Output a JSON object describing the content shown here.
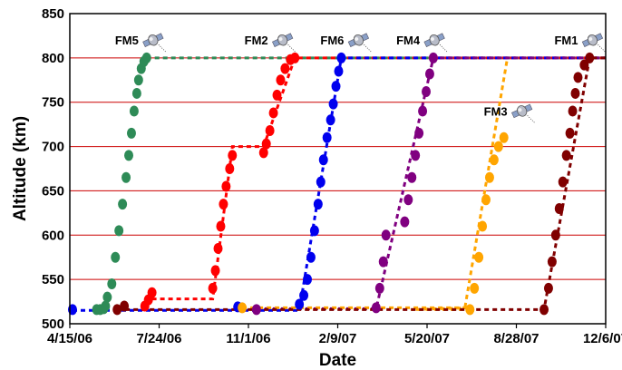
{
  "chart_data": {
    "type": "scatter",
    "xlabel": "Date",
    "ylabel": "Altitude (km)",
    "xlim": [
      "2006-04-15",
      "2007-12-06"
    ],
    "ylim": [
      500,
      850
    ],
    "x_tick_labels": [
      "4/15/06",
      "7/24/06",
      "11/1/06",
      "2/9/07",
      "5/20/07",
      "8/28/07",
      "12/6/07"
    ],
    "y_ticks": [
      500,
      550,
      600,
      650,
      700,
      750,
      800,
      850
    ],
    "grid": "horizontal",
    "gridline_color": "#cc0000",
    "series": [
      {
        "name": "FM5",
        "color": "#2e8b57",
        "points": [
          [
            "2006-05-15",
            516
          ],
          [
            "2006-05-19",
            516
          ],
          [
            "2006-05-23",
            517
          ],
          [
            "2006-05-25",
            520
          ],
          [
            "2006-05-27",
            530
          ],
          [
            "2006-06-01",
            545
          ],
          [
            "2006-06-05",
            575
          ],
          [
            "2006-06-09",
            605
          ],
          [
            "2006-06-13",
            635
          ],
          [
            "2006-06-17",
            665
          ],
          [
            "2006-06-20",
            690
          ],
          [
            "2006-06-23",
            715
          ],
          [
            "2006-06-26",
            740
          ],
          [
            "2006-06-29",
            760
          ],
          [
            "2006-07-01",
            775
          ],
          [
            "2006-07-04",
            788
          ],
          [
            "2006-07-07",
            796
          ],
          [
            "2006-07-10",
            800
          ]
        ],
        "dashed": [
          [
            "2006-07-10",
            800
          ],
          [
            "2007-12-06",
            800
          ]
        ]
      },
      {
        "name": "FM2",
        "color": "#ff0000",
        "points": [
          [
            "2006-07-08",
            520
          ],
          [
            "2006-07-12",
            527
          ],
          [
            "2006-07-16",
            535
          ],
          [
            "2006-09-22",
            540
          ],
          [
            "2006-09-25",
            560
          ],
          [
            "2006-09-28",
            585
          ],
          [
            "2006-10-01",
            610
          ],
          [
            "2006-10-04",
            635
          ],
          [
            "2006-10-07",
            655
          ],
          [
            "2006-10-11",
            675
          ],
          [
            "2006-10-14",
            690
          ],
          [
            "2006-11-18",
            693
          ],
          [
            "2006-11-21",
            703
          ],
          [
            "2006-11-25",
            718
          ],
          [
            "2006-11-29",
            738
          ],
          [
            "2006-12-03",
            758
          ],
          [
            "2006-12-07",
            775
          ],
          [
            "2006-12-12",
            788
          ],
          [
            "2006-12-18",
            798
          ],
          [
            "2006-12-23",
            800
          ]
        ],
        "dashed": [
          [
            "2006-07-16",
            528
          ],
          [
            "2006-09-22",
            528
          ],
          [
            "2006-10-14",
            700
          ],
          [
            "2006-11-18",
            700
          ],
          [
            "2006-12-23",
            800
          ],
          [
            "2007-12-06",
            800
          ]
        ]
      },
      {
        "name": "FM6",
        "color": "#0000ee",
        "points": [
          [
            "2006-04-18",
            516
          ],
          [
            "2006-10-20",
            519
          ],
          [
            "2006-12-28",
            522
          ],
          [
            "2007-01-02",
            532
          ],
          [
            "2007-01-06",
            550
          ],
          [
            "2007-01-10",
            575
          ],
          [
            "2007-01-14",
            605
          ],
          [
            "2007-01-18",
            635
          ],
          [
            "2007-01-21",
            660
          ],
          [
            "2007-01-24",
            685
          ],
          [
            "2007-01-28",
            710
          ],
          [
            "2007-02-01",
            730
          ],
          [
            "2007-02-04",
            748
          ],
          [
            "2007-02-07",
            768
          ],
          [
            "2007-02-10",
            785
          ],
          [
            "2007-02-13",
            800
          ]
        ],
        "dashed": [
          [
            "2006-04-18",
            515
          ],
          [
            "2006-12-28",
            515
          ],
          [
            "2007-02-13",
            800
          ],
          [
            "2007-12-06",
            800
          ]
        ]
      },
      {
        "name": "FM4",
        "color": "#800080",
        "points": [
          [
            "2006-11-10",
            516
          ],
          [
            "2007-03-24",
            518
          ],
          [
            "2007-03-28",
            540
          ],
          [
            "2007-04-01",
            570
          ],
          [
            "2007-04-04",
            600
          ],
          [
            "2007-04-25",
            615
          ],
          [
            "2007-04-29",
            640
          ],
          [
            "2007-05-03",
            665
          ],
          [
            "2007-05-07",
            690
          ],
          [
            "2007-05-11",
            715
          ],
          [
            "2007-05-15",
            740
          ],
          [
            "2007-05-19",
            762
          ],
          [
            "2007-05-23",
            782
          ],
          [
            "2007-05-27",
            800
          ]
        ],
        "dashed": [
          [
            "2006-11-10",
            517
          ],
          [
            "2007-03-24",
            517
          ],
          [
            "2007-05-27",
            800
          ],
          [
            "2007-12-06",
            800
          ]
        ]
      },
      {
        "name": "FM3",
        "color": "#ffa500",
        "points": [
          [
            "2006-10-25",
            518
          ],
          [
            "2007-07-07",
            516
          ],
          [
            "2007-07-12",
            540
          ],
          [
            "2007-07-17",
            575
          ],
          [
            "2007-07-21",
            610
          ],
          [
            "2007-07-25",
            640
          ],
          [
            "2007-07-29",
            665
          ],
          [
            "2007-08-03",
            685
          ],
          [
            "2007-08-08",
            700
          ],
          [
            "2007-08-14",
            710
          ]
        ],
        "dashed": [
          [
            "2006-10-25",
            518
          ],
          [
            "2007-07-07",
            518
          ],
          [
            "2007-05-02",
            516
          ],
          [
            "2007-07-01",
            516
          ],
          [
            "2007-08-18",
            800
          ]
        ]
      },
      {
        "name": "FM1",
        "color": "#800000",
        "points": [
          [
            "2006-06-07",
            516
          ],
          [
            "2006-06-15",
            520
          ],
          [
            "2007-09-28",
            516
          ],
          [
            "2007-10-03",
            540
          ],
          [
            "2007-10-07",
            570
          ],
          [
            "2007-10-11",
            600
          ],
          [
            "2007-10-15",
            630
          ],
          [
            "2007-10-19",
            660
          ],
          [
            "2007-10-23",
            690
          ],
          [
            "2007-10-27",
            715
          ],
          [
            "2007-10-30",
            740
          ],
          [
            "2007-11-02",
            760
          ],
          [
            "2007-11-05",
            778
          ],
          [
            "2007-11-12",
            792
          ],
          [
            "2007-11-18",
            800
          ]
        ],
        "dashed": [
          [
            "2006-06-07",
            516
          ],
          [
            "2007-09-28",
            516
          ],
          [
            "2007-11-18",
            800
          ],
          [
            "2007-12-06",
            800
          ]
        ]
      }
    ],
    "annotations": [
      {
        "text": "FM5",
        "x": "2006-07-01",
        "y": 815,
        "icon": "satellite-icon"
      },
      {
        "text": "FM2",
        "x": "2006-11-23",
        "y": 815,
        "icon": "satellite-icon"
      },
      {
        "text": "FM6",
        "x": "2007-02-16",
        "y": 815,
        "icon": "satellite-icon"
      },
      {
        "text": "FM4",
        "x": "2007-05-12",
        "y": 815,
        "icon": "satellite-icon"
      },
      {
        "text": "FM3",
        "x": "2007-08-18",
        "y": 735,
        "icon": "satellite-icon"
      },
      {
        "text": "FM1",
        "x": "2007-11-05",
        "y": 815,
        "icon": "satellite-icon"
      }
    ]
  }
}
